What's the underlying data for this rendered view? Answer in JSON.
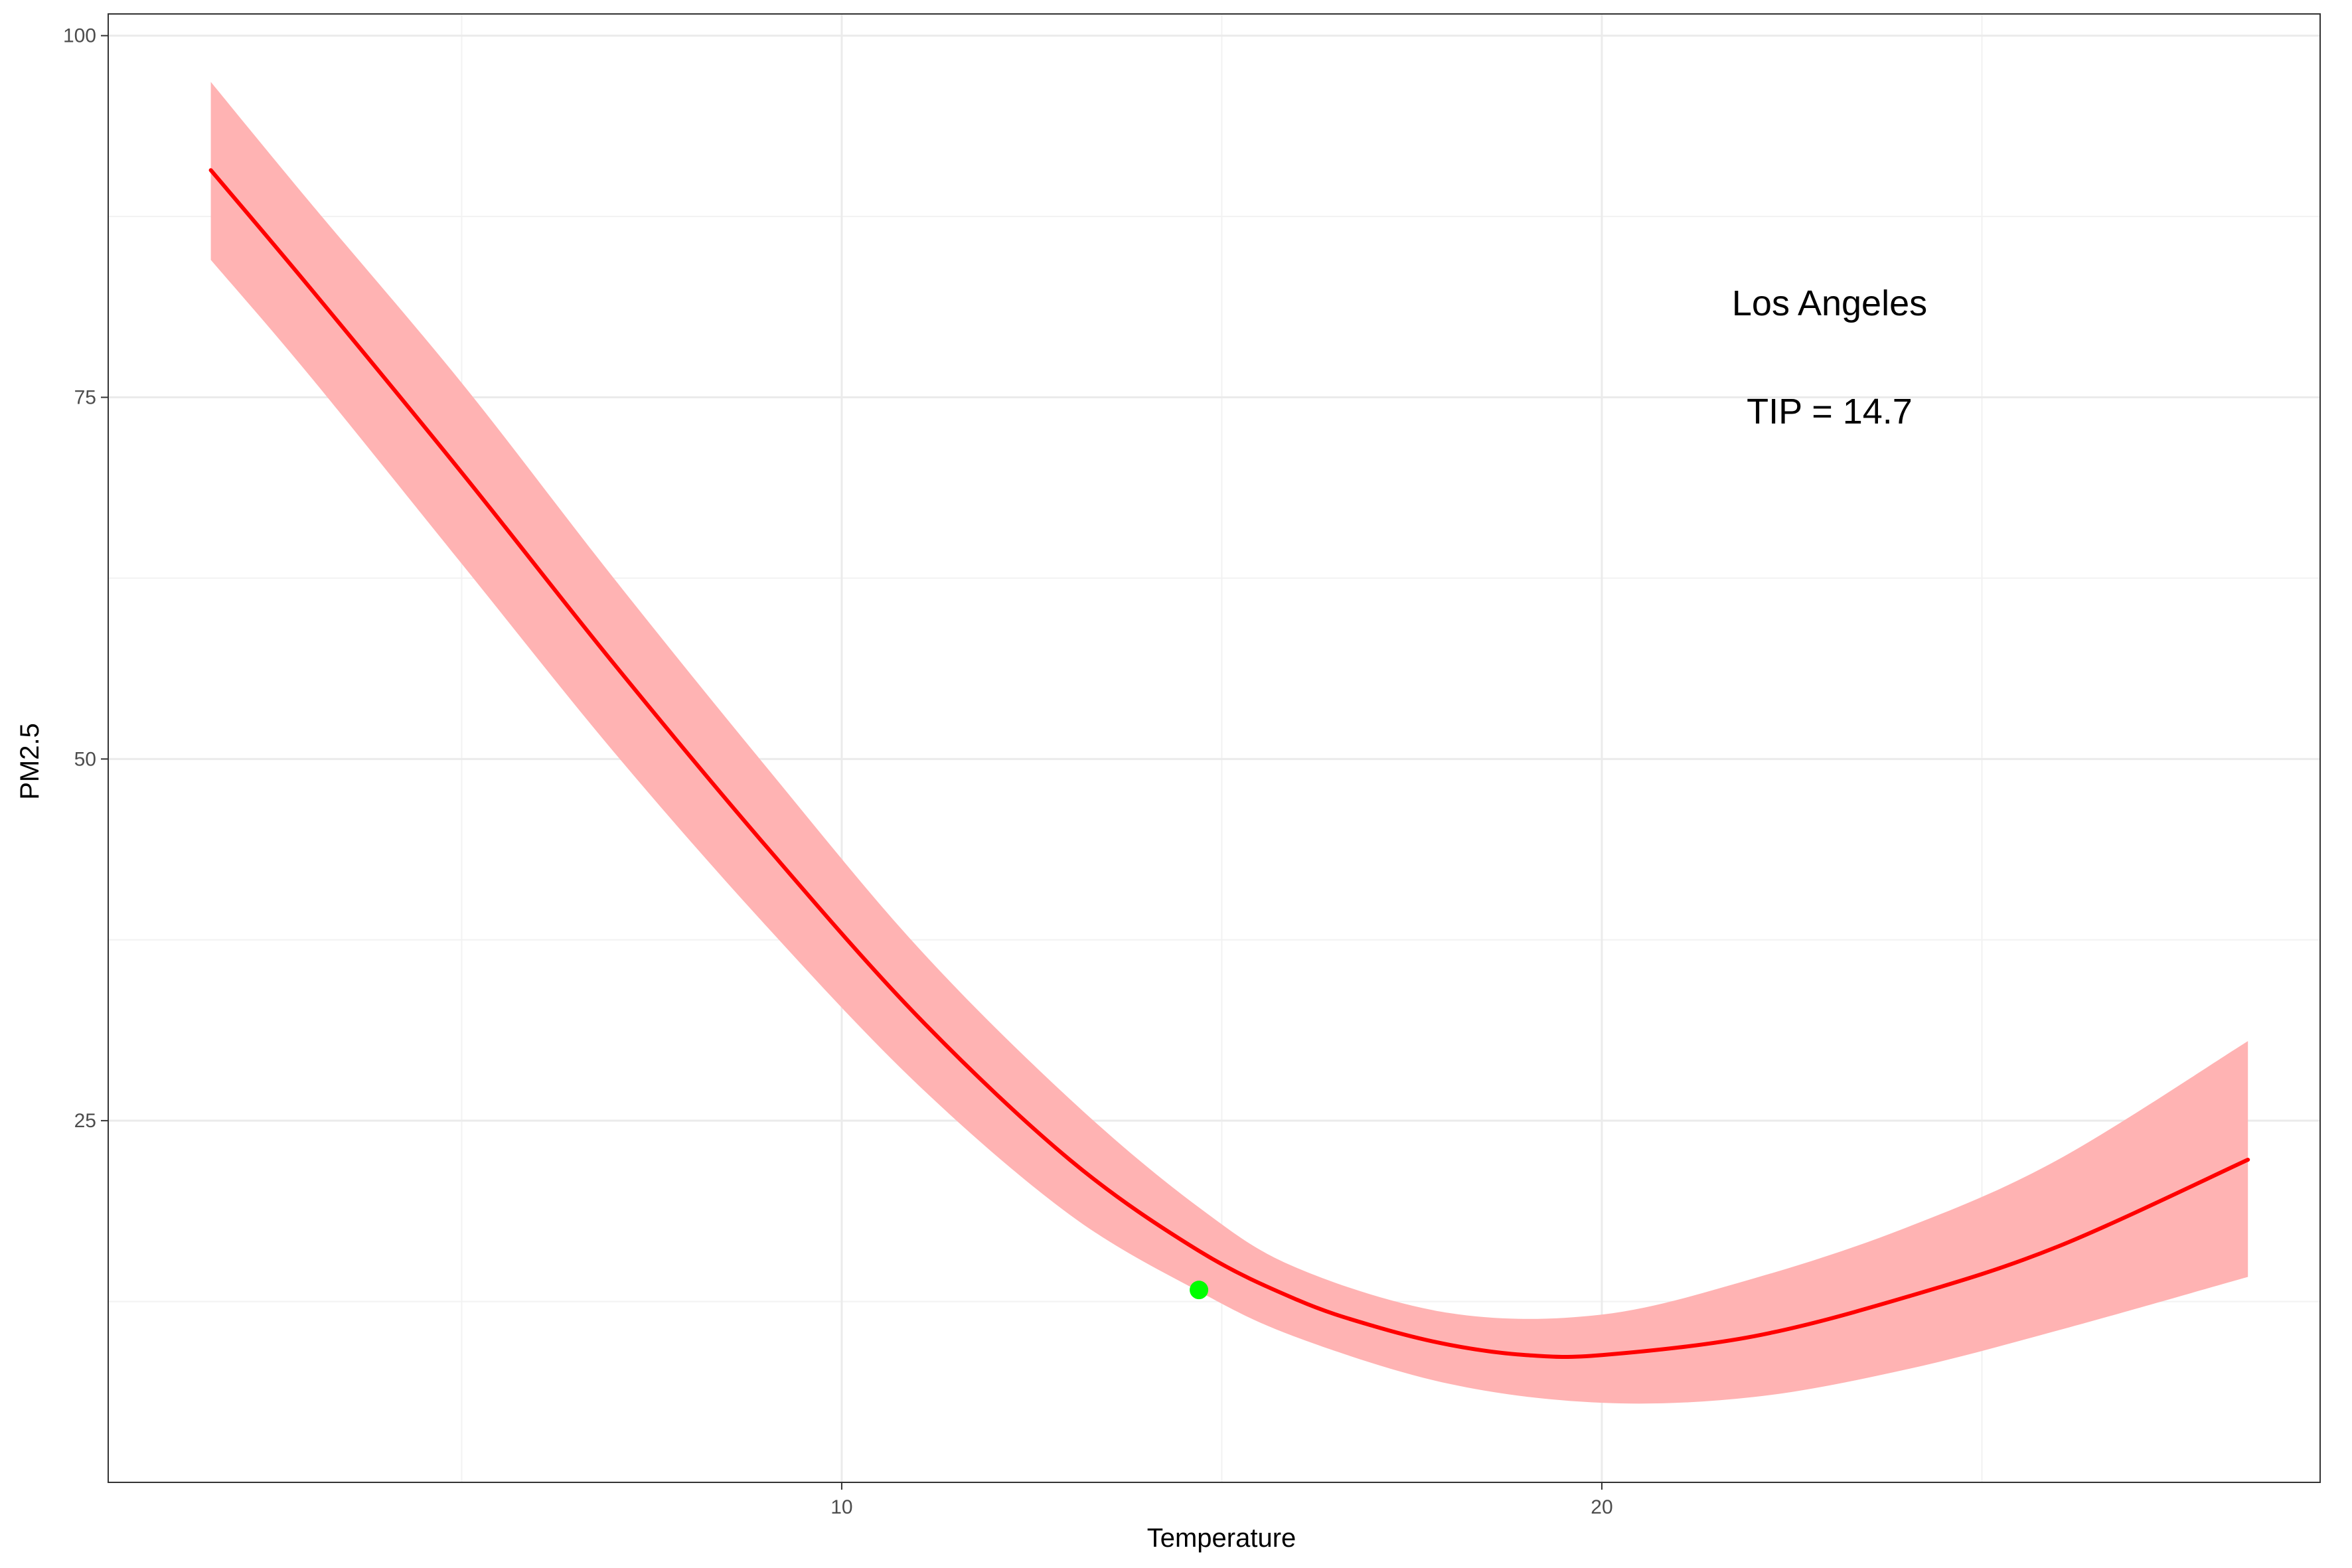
{
  "chart_data": {
    "type": "line",
    "title": "",
    "xlabel": "Temperature",
    "ylabel": "PM2.5",
    "xlim": [
      0.35,
      29.45
    ],
    "ylim": [
      0,
      101.5
    ],
    "x_ticks": [
      10,
      20
    ],
    "y_ticks": [
      25,
      50,
      75,
      100
    ],
    "x_minor_gridlines": [
      5,
      15,
      25
    ],
    "y_minor_gridlines": [
      12.5,
      37.5,
      62.5,
      87.5
    ],
    "grid": true,
    "legend": "none",
    "annotations": [
      "Los Angeles",
      "TIP = 14.7"
    ],
    "series": [
      {
        "role": "confidence-band",
        "color": "#FFB3B3",
        "x": [
          1.7,
          3,
          5,
          7,
          9,
          11,
          13,
          14.7,
          16,
          18,
          20,
          22,
          24,
          26,
          28.5
        ],
        "lower": [
          84.5,
          76.5,
          63.5,
          50.5,
          38.5,
          27.5,
          18.5,
          13.2,
          10.0,
          6.8,
          5.5,
          5.9,
          7.8,
          10.5,
          14.2
        ],
        "upper": [
          96.8,
          88.5,
          76.0,
          62.5,
          49.5,
          37.0,
          26.5,
          19.0,
          14.8,
          11.7,
          11.6,
          14.1,
          17.6,
          22.3,
          30.5
        ]
      },
      {
        "role": "fitted-curve",
        "color": "#FF0000",
        "x": [
          1.7,
          3,
          5,
          7,
          9,
          11,
          13,
          14.7,
          16,
          17,
          18,
          19,
          20,
          22,
          24,
          26,
          28.5
        ],
        "y": [
          90.7,
          82.6,
          69.8,
          56.6,
          44.0,
          32.2,
          22.3,
          16.0,
          12.6,
          10.8,
          9.5,
          8.8,
          8.8,
          10.1,
          12.8,
          16.3,
          22.3
        ]
      },
      {
        "role": "tipping-point",
        "color": "#00FF00",
        "x": [
          14.7
        ],
        "y": [
          13.3
        ]
      }
    ]
  }
}
